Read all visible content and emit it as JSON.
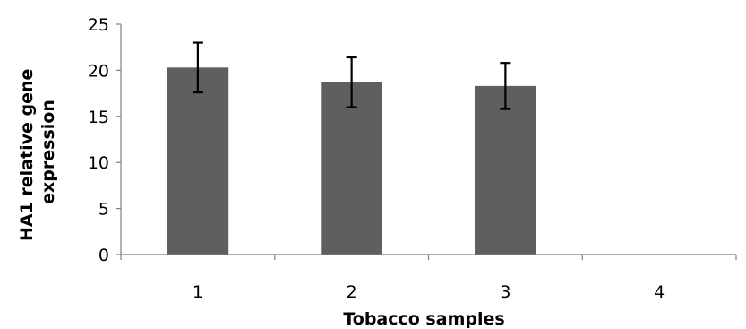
{
  "chart_data": {
    "type": "bar",
    "xlabel": "Tobacco samples",
    "ylabel": "HA1 relative gene expression",
    "ylabel_lines": [
      "HA1 relative gene",
      "expression"
    ],
    "categories": [
      "1",
      "2",
      "3",
      "4"
    ],
    "values": [
      20.3,
      18.7,
      18.3,
      0
    ],
    "errors": [
      2.7,
      2.7,
      2.5,
      null
    ],
    "ylim": [
      0,
      25
    ],
    "yticks": [
      0,
      5,
      10,
      15,
      20,
      25
    ],
    "ytick_labels": [
      "0",
      "5",
      "10",
      "15",
      "20",
      "25"
    ],
    "grid": false,
    "legend": "none",
    "bar_color": "#5f5f5f",
    "error_bar_color": "#000000"
  }
}
